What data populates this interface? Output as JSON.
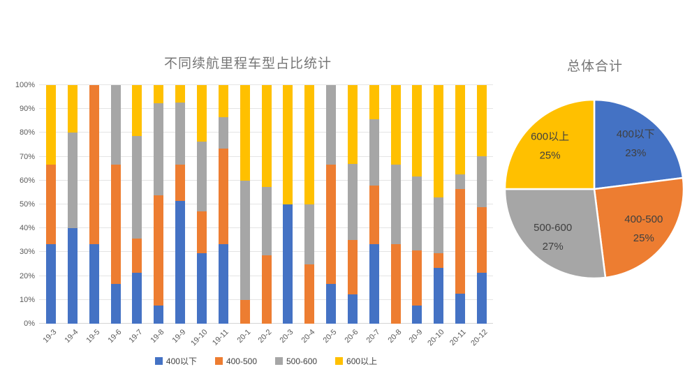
{
  "chart_data": [
    {
      "type": "bar",
      "stacking": "percent",
      "title": "不同续航里程车型占比统计",
      "categories": [
        "19-3",
        "19-4",
        "19-5",
        "19-6",
        "19-7",
        "19-8",
        "19-9",
        "19-10",
        "19-11",
        "20-1",
        "20-2",
        "20-3",
        "20-4",
        "20-5",
        "20-6",
        "20-7",
        "20-8",
        "20-9",
        "20-10",
        "20-11",
        "20-12"
      ],
      "series": [
        {
          "name": "400以下",
          "color": "#4472C4",
          "values": [
            33.3,
            40,
            33.3,
            16.7,
            21.4,
            7.7,
            51.5,
            29.4,
            33.3,
            0,
            0,
            50,
            0,
            16.7,
            12.3,
            33.3,
            0,
            7.7,
            23.5,
            12.5,
            21.4
          ]
        },
        {
          "name": "400-500",
          "color": "#ED7D31",
          "values": [
            33.3,
            0,
            66.7,
            50,
            14.3,
            46.2,
            15.2,
            17.6,
            40,
            10,
            28.6,
            0,
            25,
            50,
            22.8,
            24.7,
            33.3,
            23.1,
            5.9,
            43.8,
            27.4
          ]
        },
        {
          "name": "500-600",
          "color": "#A6A6A6",
          "values": [
            0,
            40,
            0,
            33.3,
            42.9,
            38.5,
            25.9,
            29.4,
            13.3,
            50,
            28.6,
            0,
            25,
            33.3,
            32,
            27.6,
            33.3,
            30.8,
            23.5,
            6.2,
            21.4
          ]
        },
        {
          "name": "600以上",
          "color": "#FFC000",
          "values": [
            33.4,
            20,
            0,
            0,
            21.4,
            7.6,
            7.4,
            23.6,
            13.4,
            40,
            42.8,
            50,
            50,
            0,
            32.9,
            14.4,
            33.4,
            38.4,
            47.1,
            37.5,
            29.8
          ]
        }
      ],
      "y_ticks": [
        "0%",
        "10%",
        "20%",
        "30%",
        "40%",
        "50%",
        "60%",
        "70%",
        "80%",
        "90%",
        "100%"
      ],
      "ylim": [
        0,
        100
      ],
      "grid": true,
      "legend_position": "bottom"
    },
    {
      "type": "pie",
      "title": "总体合计",
      "start_angle_deg": 0,
      "direction": "clockwise",
      "slices": [
        {
          "label": "400以下",
          "value": 23,
          "pct_label": "23%",
          "color": "#4472C4"
        },
        {
          "label": "400-500",
          "value": 25,
          "pct_label": "25%",
          "color": "#ED7D31"
        },
        {
          "label": "500-600",
          "value": 27,
          "pct_label": "27%",
          "color": "#A6A6A6"
        },
        {
          "label": "600以上",
          "value": 25,
          "pct_label": "25%",
          "color": "#FFC000"
        }
      ]
    }
  ]
}
